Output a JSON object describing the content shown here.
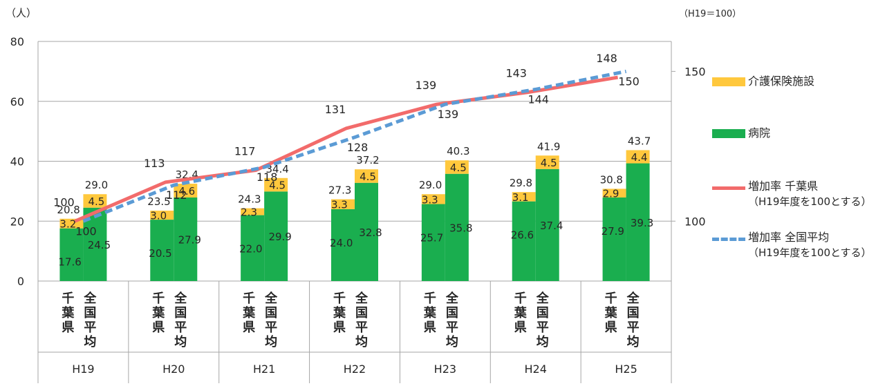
{
  "chart_data": {
    "type": "bar",
    "left_unit_label": "（人）",
    "right_unit_label": "（H19＝100）",
    "categories": [
      "H19",
      "H20",
      "H21",
      "H22",
      "H23",
      "H24",
      "H25"
    ],
    "bar_groups": [
      "千葉県",
      "全国平均"
    ],
    "stack_series": [
      {
        "name": "病院",
        "color": "#1aae4f",
        "chiba": [
          17.6,
          20.5,
          22.0,
          24.0,
          25.7,
          26.6,
          27.9
        ],
        "national": [
          24.5,
          27.9,
          29.9,
          32.8,
          35.8,
          37.4,
          39.3
        ]
      },
      {
        "name": "介護保険施設",
        "color": "#ffc83d",
        "chiba": [
          3.2,
          3.0,
          2.3,
          3.3,
          3.3,
          3.1,
          2.9
        ],
        "national": [
          4.5,
          4.6,
          4.5,
          4.5,
          4.5,
          4.5,
          4.4
        ]
      }
    ],
    "totals": {
      "chiba": [
        "20.8",
        "23.5",
        "24.3",
        "27.3",
        "29.0",
        "29.8",
        "30.8"
      ],
      "national": [
        "29.0",
        "32.4",
        "34.4",
        "37.2",
        "40.3",
        "41.9",
        "43.7"
      ]
    },
    "line_series": [
      {
        "name": "増加率 千葉県",
        "sub": "（H19年度を100とする）",
        "color": "#f26b6b",
        "style": "solid",
        "values": [
          100,
          113,
          117,
          131,
          139,
          143,
          148
        ]
      },
      {
        "name": "増加率 全国平均",
        "sub": "（H19年度を100とする）",
        "color": "#5b9bd5",
        "style": "dashed",
        "values": [
          100,
          112,
          118,
          128,
          139,
          144,
          150
        ]
      }
    ],
    "y_left": {
      "min": 0,
      "max": 80,
      "ticks": [
        "0",
        "20",
        "40",
        "60",
        "80"
      ]
    },
    "y_right": {
      "min": 80,
      "max": 160,
      "ticks": [
        "100",
        "150"
      ]
    },
    "grid": true,
    "legend_position": "right"
  }
}
